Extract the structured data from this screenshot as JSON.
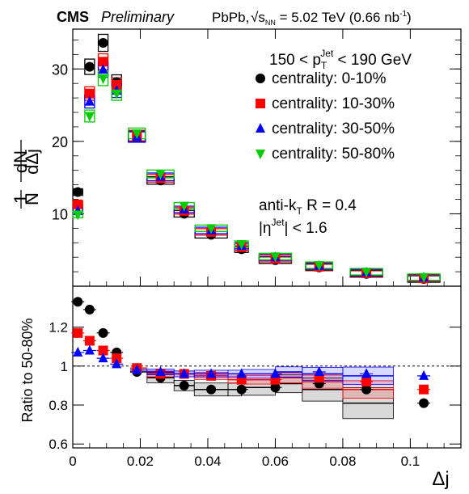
{
  "header": {
    "experiment": "CMS",
    "status": "Preliminary",
    "system": "PbPb,",
    "energy_prefix": "√s",
    "energy_sub": "NN",
    "energy_value": " = 5.02 TeV (0.66 nb",
    "lumi_sup": "-1",
    "lumi_close": ")"
  },
  "labels": {
    "top_ylabel_num": "1",
    "top_ylabel_den": "N",
    "top_ylabel_frac_num": "dN",
    "top_ylabel_frac_den": "dΔj",
    "bottom_ylabel": "Ratio to 50-80%",
    "xlabel": "Δj",
    "pt_cut_left": "150 < p",
    "pt_cut_sub": "T",
    "pt_cut_sup": "Jet",
    "pt_cut_right": " < 190 GeV",
    "algo": "anti-k",
    "algo_sub": "T",
    "algo_right": " R = 0.4",
    "eta_left": "|η",
    "eta_sup": "Jet",
    "eta_right": "| < 1.6"
  },
  "colors": {
    "s0": "#000000",
    "s1": "#ff0000",
    "s2": "#0000ff",
    "s3": "#00cc00"
  },
  "chart_data": [
    {
      "type": "scatter",
      "panel": "top",
      "xlim": [
        0,
        0.115
      ],
      "ylim": [
        0,
        35.5
      ],
      "x_ticks": [
        0,
        0.02,
        0.04,
        0.06,
        0.08,
        0.1
      ],
      "x_tick_labels": [
        "0",
        "0.02",
        "0.04",
        "0.06",
        "0.08",
        "0.1"
      ],
      "y_ticks": [
        10,
        20,
        30
      ],
      "y_tick_labels": [
        "10",
        "20",
        "30"
      ],
      "bin_edges": [
        0,
        0.0035,
        0.007,
        0.011,
        0.017,
        0.022,
        0.03,
        0.036,
        0.046,
        0.05,
        0.06,
        0.068,
        0.08,
        0.095,
        0.115
      ],
      "x": [
        0.0015,
        0.005,
        0.009,
        0.013,
        0.019,
        0.026,
        0.033,
        0.041,
        0.05,
        0.06,
        0.073,
        0.087,
        0.104
      ],
      "series": [
        {
          "name": "centrality: 0-10%",
          "marker": "circle",
          "values": [
            13,
            30.3,
            33.6,
            28.2,
            20.7,
            14.6,
            10.0,
            7.1,
            5.1,
            3.6,
            2.6,
            1.7,
            1.0
          ]
        },
        {
          "name": "centrality: 10-30%",
          "marker": "square",
          "values": [
            11.3,
            26.6,
            31.0,
            27.8,
            20.8,
            14.9,
            10.4,
            7.5,
            5.4,
            3.8,
            2.7,
            1.8,
            1.1
          ]
        },
        {
          "name": "centrality: 30-50%",
          "marker": "triangle-up",
          "values": [
            10.4,
            25.5,
            29.9,
            27.0,
            20.6,
            15.1,
            10.6,
            7.7,
            5.6,
            4.0,
            2.8,
            1.9,
            1.2
          ]
        },
        {
          "name": "centrality: 50-80%",
          "marker": "triangle-down",
          "values": [
            9.9,
            23.5,
            28.7,
            26.6,
            21.1,
            15.5,
            11.1,
            8.0,
            5.8,
            4.1,
            2.9,
            2.0,
            1.25
          ]
        }
      ]
    },
    {
      "type": "scatter",
      "panel": "bottom",
      "xlabel": "Δj",
      "ylabel": "Ratio to 50-80%",
      "xlim": [
        0,
        0.115
      ],
      "ylim": [
        0.58,
        1.41
      ],
      "y_ticks": [
        0.6,
        0.8,
        1.0,
        1.2
      ],
      "y_tick_labels": [
        "0.6",
        "0.8",
        "1",
        "1.2"
      ],
      "reference_line": 1.0,
      "x": [
        0.0015,
        0.005,
        0.009,
        0.013,
        0.019,
        0.026,
        0.033,
        0.041,
        0.05,
        0.06,
        0.073,
        0.087,
        0.104
      ],
      "series": [
        {
          "name": "centrality: 0-10%",
          "marker": "circle",
          "values": [
            1.33,
            1.29,
            1.17,
            1.07,
            0.97,
            0.94,
            0.9,
            0.88,
            0.88,
            0.89,
            0.91,
            0.88,
            0.81
          ]
        },
        {
          "name": "centrality: 10-30%",
          "marker": "square",
          "values": [
            1.17,
            1.13,
            1.08,
            1.04,
            0.99,
            0.96,
            0.96,
            0.95,
            0.93,
            0.93,
            0.94,
            0.92,
            0.88
          ]
        },
        {
          "name": "centrality: 30-50%",
          "marker": "triangle-up",
          "values": [
            1.07,
            1.08,
            1.04,
            1.01,
            0.98,
            0.97,
            0.96,
            0.96,
            0.96,
            0.96,
            0.97,
            0.96,
            0.95
          ]
        }
      ]
    }
  ]
}
